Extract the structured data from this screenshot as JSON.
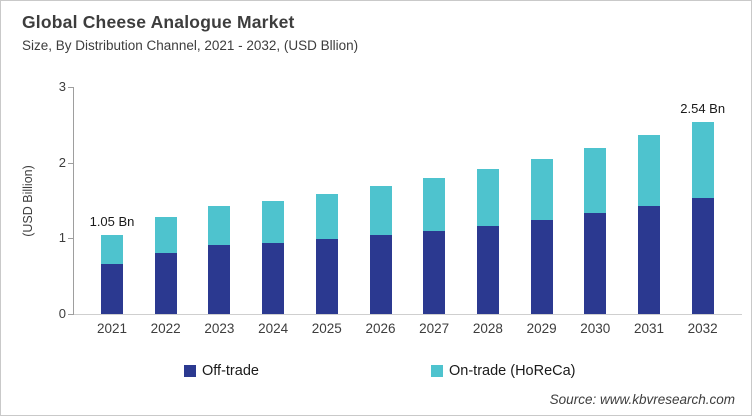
{
  "header": {
    "title": "Global Cheese Analogue Market",
    "subtitle": "Size, By Distribution Channel, 2021 - 2032, (USD Bllion)"
  },
  "chart_data": {
    "type": "bar",
    "stacked": true,
    "title": "Global Cheese Analogue Market Size, By Distribution Channel, 2021 - 2032, (USD Bllion)",
    "xlabel": "",
    "ylabel": "(USD Billion)",
    "ylim": [
      0,
      3
    ],
    "y_ticks": [
      "0",
      "1",
      "2",
      "3"
    ],
    "grid": false,
    "legend_position": "bottom",
    "categories": [
      "2021",
      "2022",
      "2023",
      "2024",
      "2025",
      "2026",
      "2027",
      "2028",
      "2029",
      "2030",
      "2031",
      "2032"
    ],
    "series": [
      {
        "name": "Off-trade",
        "color": "#2B3990",
        "values": [
          0.66,
          0.8,
          0.91,
          0.94,
          0.99,
          1.04,
          1.1,
          1.16,
          1.24,
          1.33,
          1.43,
          1.53
        ]
      },
      {
        "name": "On-trade (HoReCa)",
        "color": "#4EC3CE",
        "values": [
          0.39,
          0.48,
          0.52,
          0.56,
          0.6,
          0.65,
          0.7,
          0.75,
          0.81,
          0.87,
          0.94,
          1.01
        ]
      }
    ],
    "totals": [
      1.05,
      1.28,
      1.43,
      1.5,
      1.59,
      1.69,
      1.8,
      1.91,
      2.05,
      2.2,
      2.37,
      2.54
    ],
    "annotations": [
      {
        "category": "2021",
        "text": "1.05 Bn"
      },
      {
        "category": "2032",
        "text": "2.54 Bn"
      }
    ]
  },
  "colors": {
    "off_trade": "#2B3990",
    "on_trade": "#4EC3CE",
    "axis_line": "#9e9e9e",
    "baseline": "#cfcfcf",
    "text": "#3d3d3d"
  },
  "source": {
    "text": "Source: www.kbvresearch.com"
  }
}
